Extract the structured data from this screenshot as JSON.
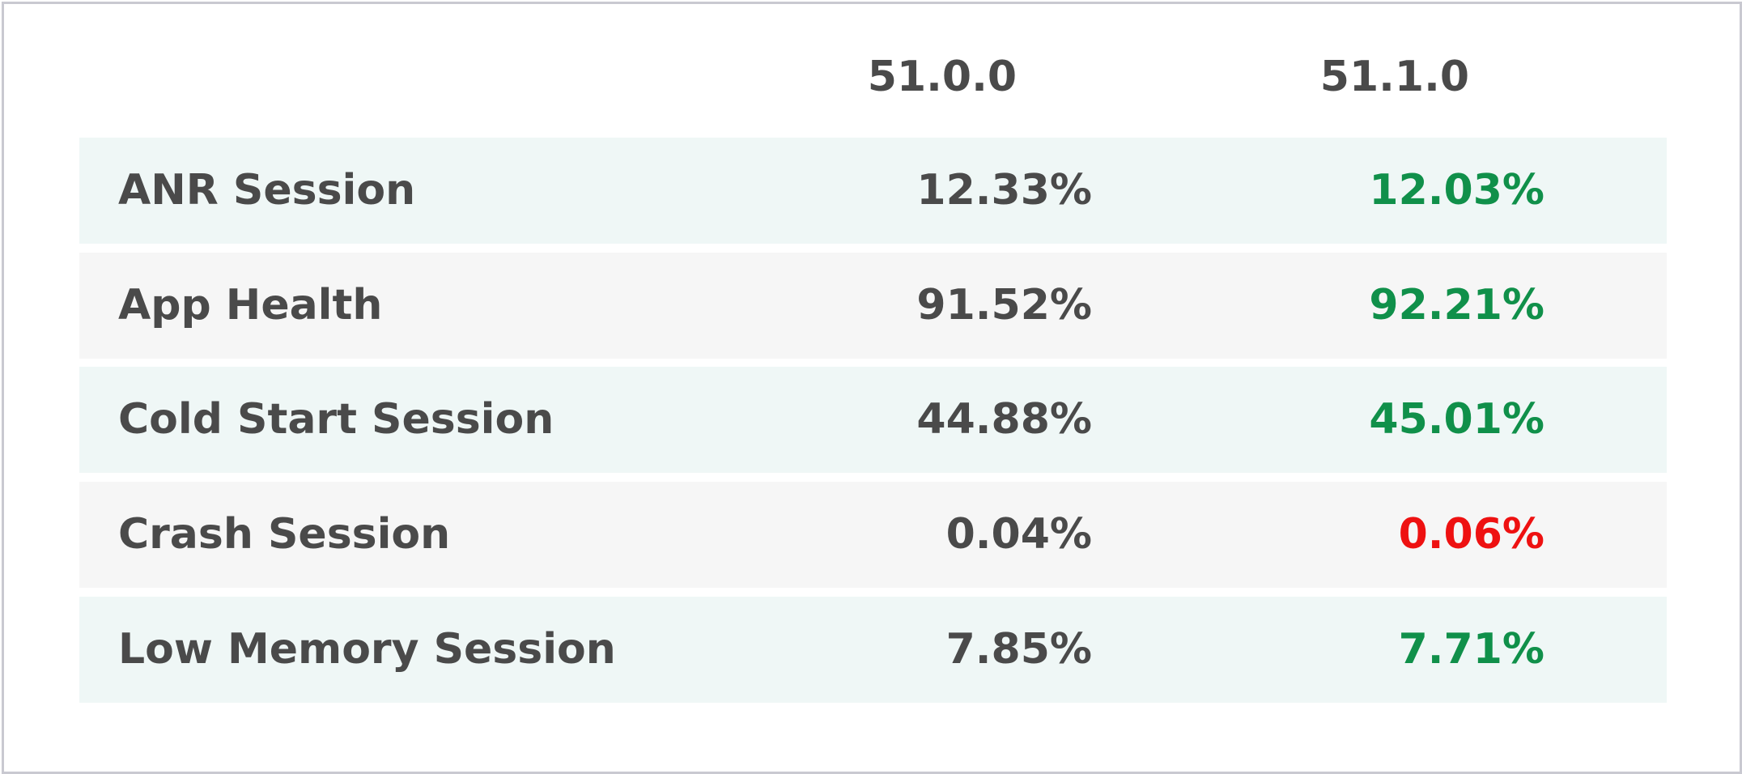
{
  "table": {
    "columns": [
      "51.0.0",
      "51.1.0"
    ],
    "rows": [
      {
        "label": "ANR Session",
        "cells": [
          "12.33%",
          "12.03%"
        ],
        "colors": [
          "#4a4a4a",
          "#10904a"
        ],
        "background": "#eff7f6"
      },
      {
        "label": "App Health",
        "cells": [
          "91.52%",
          "92.21%"
        ],
        "colors": [
          "#4a4a4a",
          "#10904a"
        ],
        "background": "#f6f6f6"
      },
      {
        "label": "Cold Start Session",
        "cells": [
          "44.88%",
          "45.01%"
        ],
        "colors": [
          "#4a4a4a",
          "#10904a"
        ],
        "background": "#eff7f6"
      },
      {
        "label": "Crash Session",
        "cells": [
          "0.04%",
          "0.06%"
        ],
        "colors": [
          "#4a4a4a",
          "#ee1111"
        ],
        "background": "#f6f6f6"
      },
      {
        "label": "Low Memory Session",
        "cells": [
          "7.85%",
          "7.71%"
        ],
        "colors": [
          "#4a4a4a",
          "#10904a"
        ],
        "background": "#eff7f6"
      }
    ]
  }
}
